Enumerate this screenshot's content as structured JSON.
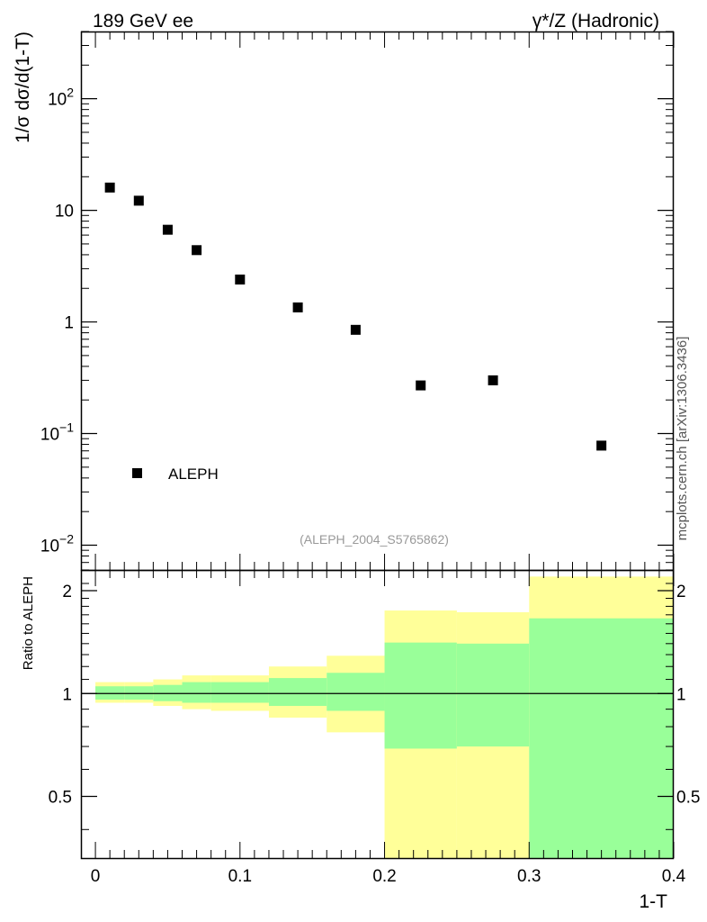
{
  "header": {
    "left_title": "189 GeV ee",
    "right_title": "γ*/Z (Hadronic)"
  },
  "side_label": "mcplots.cern.ch [arXiv:1306.3436]",
  "analysis_tag": "(ALEPH_2004_S5765862)",
  "chart_data": [
    {
      "type": "scatter",
      "ylabel": "1/σ  dσ/d(1-T)",
      "yscale": "log",
      "ylim": [
        0.006,
        400
      ],
      "xlim": [
        -0.01,
        0.4
      ],
      "ytick_values": [
        0.01,
        0.1,
        1,
        10,
        100
      ],
      "legend": {
        "placement": "bottom-left",
        "entries": [
          "ALEPH"
        ]
      },
      "series": [
        {
          "name": "ALEPH",
          "marker": "square",
          "x": [
            0.01,
            0.03,
            0.05,
            0.07,
            0.1,
            0.14,
            0.18,
            0.225,
            0.275,
            0.35
          ],
          "y": [
            16.0,
            12.2,
            6.7,
            4.4,
            2.4,
            1.35,
            0.85,
            0.27,
            0.3,
            0.078
          ]
        }
      ]
    },
    {
      "type": "area",
      "ylabel": "Ratio to ALEPH",
      "xlabel": "1-T",
      "ylim": [
        0.33,
        2.3
      ],
      "xlim": [
        -0.01,
        0.4
      ],
      "xtick_values": [
        0,
        0.1,
        0.2,
        0.3,
        0.4
      ],
      "xtick_labels": [
        "0",
        "0.1",
        "0.2",
        "0.3",
        "0.4"
      ],
      "ytick_values": [
        0.5,
        1,
        2
      ],
      "ytick_labels": [
        "0.5",
        "1",
        "2"
      ],
      "reference_line": 1,
      "bins": [
        {
          "lo": 0.0,
          "hi": 0.02,
          "inner": [
            0.96,
            1.05
          ],
          "outer": [
            0.94,
            1.08
          ]
        },
        {
          "lo": 0.02,
          "hi": 0.04,
          "inner": [
            0.96,
            1.05
          ],
          "outer": [
            0.94,
            1.08
          ]
        },
        {
          "lo": 0.04,
          "hi": 0.06,
          "inner": [
            0.95,
            1.06
          ],
          "outer": [
            0.92,
            1.1
          ]
        },
        {
          "lo": 0.06,
          "hi": 0.08,
          "inner": [
            0.94,
            1.08
          ],
          "outer": [
            0.9,
            1.13
          ]
        },
        {
          "lo": 0.08,
          "hi": 0.12,
          "inner": [
            0.94,
            1.08
          ],
          "outer": [
            0.89,
            1.13
          ]
        },
        {
          "lo": 0.12,
          "hi": 0.16,
          "inner": [
            0.92,
            1.11
          ],
          "outer": [
            0.85,
            1.2
          ]
        },
        {
          "lo": 0.16,
          "hi": 0.2,
          "inner": [
            0.89,
            1.15
          ],
          "outer": [
            0.77,
            1.29
          ]
        },
        {
          "lo": 0.2,
          "hi": 0.25,
          "inner": [
            0.69,
            1.41
          ],
          "outer": [
            0.33,
            1.75
          ]
        },
        {
          "lo": 0.25,
          "hi": 0.3,
          "inner": [
            0.7,
            1.4
          ],
          "outer": [
            0.33,
            1.73
          ]
        },
        {
          "lo": 0.3,
          "hi": 0.4,
          "inner": [
            0.33,
            1.66
          ],
          "outer": [
            0.33,
            2.2
          ]
        }
      ]
    }
  ]
}
